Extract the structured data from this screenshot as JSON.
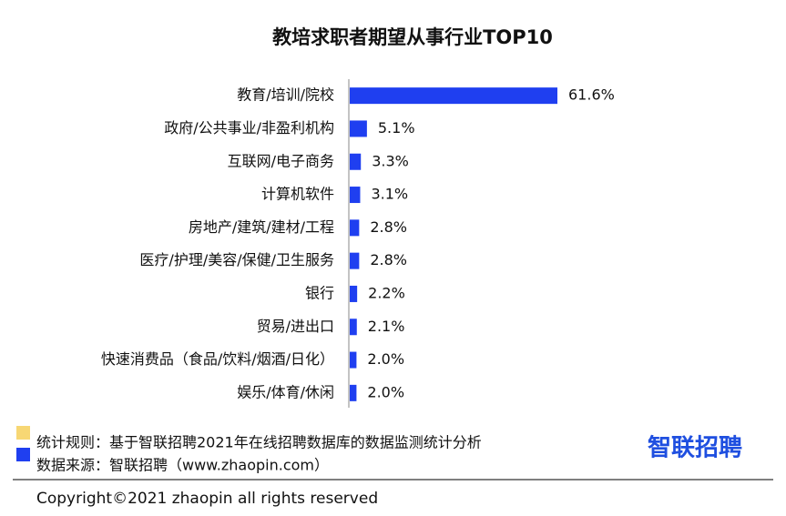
{
  "chart_data": {
    "type": "bar",
    "orientation": "horizontal",
    "title": "教培求职者期望从事行业TOP10",
    "categories": [
      "教育/培训/院校",
      "政府/公共事业/非盈利机构",
      "互联网/电子商务",
      "计算机软件",
      "房地产/建筑/建材/工程",
      "医疗/护理/美容/保健/卫生服务",
      "银行",
      "贸易/进出口",
      "快速消费品（食品/饮料/烟酒/日化）",
      "娱乐/体育/休闲"
    ],
    "values": [
      61.6,
      5.1,
      3.3,
      3.1,
      2.8,
      2.8,
      2.2,
      2.1,
      2.0,
      2.0
    ],
    "value_labels": [
      "61.6%",
      "5.1%",
      "3.3%",
      "3.1%",
      "2.8%",
      "2.8%",
      "2.2%",
      "2.1%",
      "2.0%",
      "2.0%"
    ],
    "color": "#1f3ff0"
  },
  "footer": {
    "notes": [
      "统计规则：基于智联招聘2021年在线招聘数据库的数据监测统计分析",
      "数据来源：智联招聘（www.zhaopin.com）"
    ],
    "logo": "智联招聘",
    "copyright": "Copyright©2021 zhaopin all rights reserved"
  }
}
